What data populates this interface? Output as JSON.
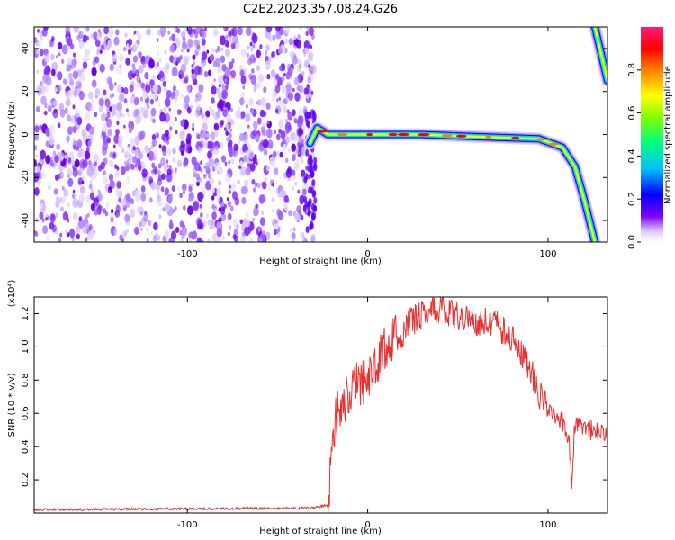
{
  "title": "C2E2.2023.357.08.24.G26",
  "chart_data": [
    {
      "type": "heatmap",
      "xlabel": "Height of straight line (km)",
      "ylabel": "Frequency (Hz)",
      "xlim": [
        -185,
        133
      ],
      "ylim": [
        -50,
        50
      ],
      "xticks": [
        -100,
        0,
        100
      ],
      "yticks": [
        -40,
        -20,
        0,
        20,
        40
      ],
      "colorbar": {
        "label": "Normalized spectral amplitude",
        "range": [
          0,
          1
        ],
        "ticks": [
          "0.0",
          "0.2",
          "0.4",
          "0.6",
          "0.8"
        ],
        "colormap": [
          "#ffffff",
          "#7f00ff",
          "#0000ff",
          "#00bfff",
          "#00ff80",
          "#a0ff00",
          "#ffff00",
          "#ff8000",
          "#ff0000",
          "#ff1a80"
        ]
      },
      "noise_region_x": [
        -185,
        -30
      ],
      "ridge": [
        {
          "x": -32,
          "f": -4
        },
        {
          "x": -28,
          "f": 3
        },
        {
          "x": -22,
          "f": 0
        },
        {
          "x": -10,
          "f": 0
        },
        {
          "x": 0,
          "f": 0
        },
        {
          "x": 30,
          "f": 0
        },
        {
          "x": 60,
          "f": -1
        },
        {
          "x": 95,
          "f": -2
        },
        {
          "x": 108,
          "f": -6
        },
        {
          "x": 115,
          "f": -15
        },
        {
          "x": 120,
          "f": -30
        },
        {
          "x": 126,
          "f": -50
        }
      ],
      "upper_ridge": [
        {
          "x": 126,
          "f": 50
        },
        {
          "x": 133,
          "f": 25
        }
      ]
    },
    {
      "type": "line",
      "xlabel": "Height of straight line (km)",
      "ylabel": "SNR (10 * v/v)",
      "multiplier": "(x10⁴)",
      "xlim": [
        -185,
        133
      ],
      "ylim": [
        0,
        1.3
      ],
      "xticks": [
        -100,
        0,
        100
      ],
      "yticks": [
        "0.2",
        "0.4",
        "0.6",
        "0.8",
        "1.0",
        "1.2"
      ],
      "series": [
        {
          "color": "#e83030",
          "values": [
            {
              "x": -185,
              "y": 0.02
            },
            {
              "x": -30,
              "y": 0.03
            },
            {
              "x": -22,
              "y": 0.05
            },
            {
              "x": -20,
              "y": 0.35
            },
            {
              "x": -18,
              "y": 0.55
            },
            {
              "x": -15,
              "y": 0.68
            },
            {
              "x": -10,
              "y": 0.72
            },
            {
              "x": 0,
              "y": 0.82
            },
            {
              "x": 10,
              "y": 1.0
            },
            {
              "x": 20,
              "y": 1.12
            },
            {
              "x": 30,
              "y": 1.2
            },
            {
              "x": 40,
              "y": 1.22
            },
            {
              "x": 50,
              "y": 1.18
            },
            {
              "x": 60,
              "y": 1.16
            },
            {
              "x": 70,
              "y": 1.14
            },
            {
              "x": 80,
              "y": 1.05
            },
            {
              "x": 90,
              "y": 0.88
            },
            {
              "x": 95,
              "y": 0.72
            },
            {
              "x": 100,
              "y": 0.64
            },
            {
              "x": 108,
              "y": 0.56
            },
            {
              "x": 112,
              "y": 0.4
            },
            {
              "x": 113,
              "y": 0.15
            },
            {
              "x": 115,
              "y": 0.55
            },
            {
              "x": 120,
              "y": 0.52
            },
            {
              "x": 125,
              "y": 0.49
            },
            {
              "x": 133,
              "y": 0.48
            }
          ]
        }
      ]
    }
  ]
}
